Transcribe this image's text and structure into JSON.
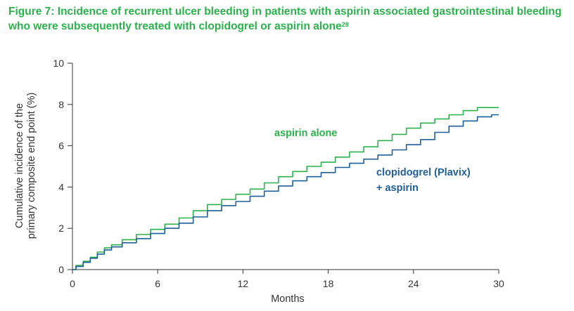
{
  "figure": {
    "title": "Figure 7: Incidence of recurrent ulcer bleeding in patients with aspirin associated gastrointestinal bleeding who were subsequently treated with clopidogrel or aspirin alone",
    "reference": "28"
  },
  "chart_data": {
    "type": "line",
    "xlabel": "Months",
    "ylabel_line1": "Cumulative incidence of the",
    "ylabel_line2": "primary composite end point (%)",
    "xlim": [
      0,
      30
    ],
    "ylim": [
      0,
      10
    ],
    "xticks": [
      0,
      6,
      12,
      18,
      24,
      30
    ],
    "yticks": [
      0,
      2,
      4,
      6,
      8,
      10
    ],
    "grid": false,
    "series": [
      {
        "name": "aspirin alone",
        "color": "#2bb24c",
        "x": [
          0,
          0.5,
          1,
          1.5,
          2,
          2.5,
          3,
          4,
          5,
          6,
          7,
          8,
          9,
          10,
          11,
          12,
          13,
          14,
          15,
          16,
          17,
          18,
          19,
          20,
          21,
          22,
          23,
          24,
          25,
          26,
          27,
          28,
          29,
          30
        ],
        "y": [
          0,
          0.2,
          0.4,
          0.6,
          0.85,
          1.05,
          1.2,
          1.45,
          1.7,
          1.95,
          2.2,
          2.5,
          2.85,
          3.15,
          3.4,
          3.65,
          3.9,
          4.2,
          4.5,
          4.75,
          5.0,
          5.2,
          5.45,
          5.7,
          5.95,
          6.25,
          6.55,
          6.85,
          7.1,
          7.3,
          7.5,
          7.7,
          7.85,
          7.85
        ]
      },
      {
        "name": "clopidogrel (Plavix) + aspirin",
        "label_line1": "clopidogrel (Plavix)",
        "label_line2": "+ aspirin",
        "color": "#1f5f99",
        "x": [
          0,
          0.5,
          1,
          1.5,
          2,
          2.5,
          3,
          4,
          5,
          6,
          7,
          8,
          9,
          10,
          11,
          12,
          13,
          14,
          15,
          16,
          17,
          18,
          19,
          20,
          21,
          22,
          23,
          24,
          25,
          26,
          27,
          28,
          29,
          30
        ],
        "y": [
          0,
          0.15,
          0.35,
          0.55,
          0.75,
          0.95,
          1.1,
          1.3,
          1.5,
          1.75,
          2.0,
          2.25,
          2.55,
          2.85,
          3.1,
          3.3,
          3.55,
          3.8,
          4.05,
          4.3,
          4.5,
          4.7,
          4.95,
          5.15,
          5.35,
          5.55,
          5.8,
          6.05,
          6.3,
          6.65,
          6.95,
          7.2,
          7.4,
          7.5
        ]
      }
    ]
  }
}
